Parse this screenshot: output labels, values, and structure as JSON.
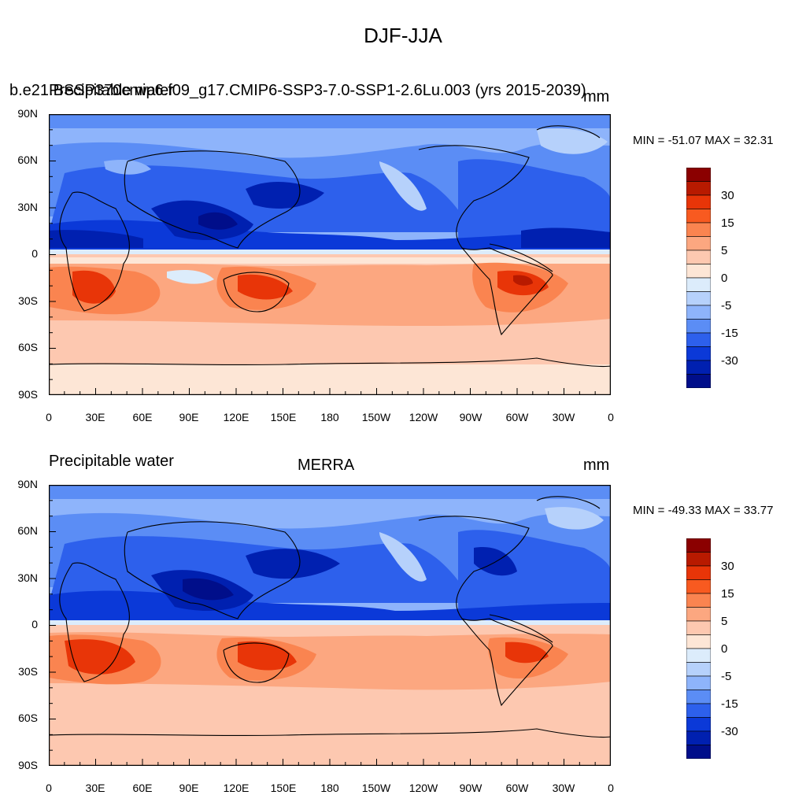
{
  "title": "DJF-JJA",
  "panels": [
    {
      "left_text": "b.e21.BSSP370cmip6.f09_g17.CMIP6-SSP3-7.0-SSP1-2.6Lu.003 (yrs 2015-2039)",
      "left_text_overlap": "Precipitable water",
      "center_text": "",
      "right_text": "mm",
      "minmax": "MIN = -51.07 MAX =  32.31"
    },
    {
      "left_text": "Precipitable water",
      "center_text": "MERRA",
      "right_text": "mm",
      "minmax": "MIN = -49.33 MAX =  33.77"
    }
  ],
  "lat_labels": [
    "90N",
    "60N",
    "30N",
    "0",
    "30S",
    "60S",
    "90S"
  ],
  "lon_labels": [
    "0",
    "30E",
    "60E",
    "90E",
    "120E",
    "150E",
    "180",
    "150W",
    "120W",
    "90W",
    "60W",
    "30W",
    "0"
  ],
  "colorbar": {
    "colors_top_to_bottom": [
      "#8b0000",
      "#b81a00",
      "#e83508",
      "#f85a20",
      "#fa8450",
      "#fca780",
      "#fdc8b0",
      "#fde6d6",
      "#dcecfb",
      "#b6d1fb",
      "#8eb4fb",
      "#5b8df5",
      "#2d60ec",
      "#0b39d8",
      "#0020b0",
      "#000e8a"
    ],
    "labels": [
      "30",
      "15",
      "5",
      "0",
      "-5",
      "-15",
      "-30"
    ]
  },
  "colors": {
    "land_outline": "#000000",
    "axis": "#000000"
  }
}
